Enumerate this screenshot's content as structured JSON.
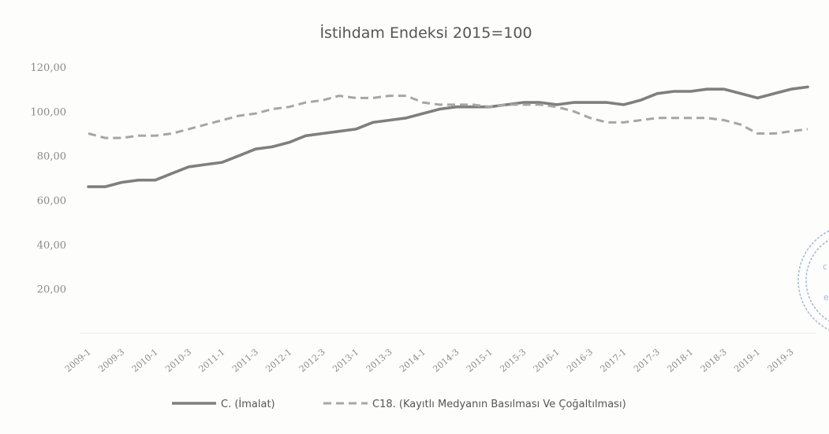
{
  "chart_data": {
    "type": "line",
    "title": "İstihdam Endeksi 2015=100",
    "xlabel": "",
    "ylabel": "",
    "ylim": [
      0,
      120
    ],
    "yticks": [
      "20,00",
      "40,00",
      "60,00",
      "80,00",
      "100,00",
      "120,00"
    ],
    "grid": false,
    "legend_position": "bottom",
    "x": [
      "2009-1",
      "2009-2",
      "2009-3",
      "2009-4",
      "2010-1",
      "2010-2",
      "2010-3",
      "2010-4",
      "2011-1",
      "2011-2",
      "2011-3",
      "2011-4",
      "2012-1",
      "2012-2",
      "2012-3",
      "2012-4",
      "2013-1",
      "2013-2",
      "2013-3",
      "2013-4",
      "2014-1",
      "2014-2",
      "2014-3",
      "2014-4",
      "2015-1",
      "2015-2",
      "2015-3",
      "2015-4",
      "2016-1",
      "2016-2",
      "2016-3",
      "2016-4",
      "2017-1",
      "2017-2",
      "2017-3",
      "2017-4",
      "2018-1",
      "2018-2",
      "2018-3",
      "2018-4",
      "2019-1",
      "2019-2",
      "2019-3",
      "2019-4"
    ],
    "xtick_labels": [
      "2009-1",
      "2009-3",
      "2010-1",
      "2010-3",
      "2011-1",
      "2011-3",
      "2012-1",
      "2012-3",
      "2013-1",
      "2013-3",
      "2014-1",
      "2014-3",
      "2015-1",
      "2015-3",
      "2016-1",
      "2016-3",
      "2017-1",
      "2017-3",
      "2018-1",
      "2018-3",
      "2019-1",
      "2019-3"
    ],
    "series": [
      {
        "name": "C. (İmalat)",
        "style": "solid",
        "color": "#7f7f7f",
        "values": [
          66,
          66,
          68,
          69,
          69,
          72,
          75,
          76,
          77,
          80,
          83,
          84,
          86,
          89,
          90,
          91,
          92,
          95,
          96,
          97,
          99,
          101,
          102,
          102,
          102,
          103,
          104,
          104,
          103,
          104,
          104,
          104,
          103,
          105,
          108,
          109,
          109,
          110,
          110,
          108,
          106,
          108,
          110,
          111
        ]
      },
      {
        "name": "C18. (Kayıtlı Medyanın Basılması Ve Çoğaltılması)",
        "style": "dashed",
        "color": "#a6a6a6",
        "values": [
          90,
          88,
          88,
          89,
          89,
          90,
          92,
          94,
          96,
          98,
          99,
          101,
          102,
          104,
          105,
          107,
          106,
          106,
          107,
          107,
          104,
          103,
          103,
          103,
          102,
          103,
          103,
          103,
          102,
          100,
          97,
          95,
          95,
          96,
          97,
          97,
          97,
          97,
          96,
          94,
          90,
          90,
          91,
          92
        ]
      }
    ]
  },
  "stamp": {
    "glyphs": [
      "c",
      "e"
    ]
  }
}
